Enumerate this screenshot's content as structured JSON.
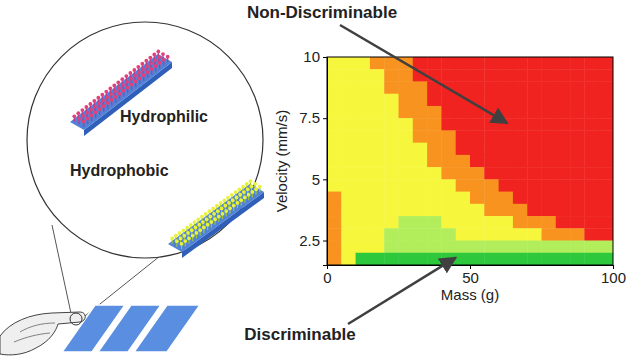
{
  "chart_data": {
    "type": "heatmap",
    "x_label": "Mass (g)",
    "y_label": "Velocity (mm/s)",
    "xlim": [
      0,
      100
    ],
    "ylim": [
      1.5,
      10
    ],
    "xticks": [
      0,
      50,
      100
    ],
    "yticks": [
      2.5,
      5,
      7.5,
      10
    ],
    "x": [
      2.5,
      7.5,
      12.5,
      17.5,
      22.5,
      27.5,
      32.5,
      37.5,
      42.5,
      47.5,
      52.5,
      57.5,
      62.5,
      67.5,
      72.5,
      77.5,
      82.5,
      87.5,
      92.5,
      97.5
    ],
    "y": [
      9.75,
      9.25,
      8.75,
      8.25,
      7.75,
      7.25,
      6.75,
      6.25,
      5.75,
      5.25,
      4.75,
      4.25,
      3.75,
      3.25,
      2.75,
      2.25,
      1.75
    ],
    "z": [
      [
        2,
        2,
        2,
        3,
        3,
        3,
        4,
        4,
        4,
        4,
        4,
        4,
        4,
        4,
        4,
        4,
        4,
        4,
        4,
        4
      ],
      [
        2,
        2,
        2,
        2,
        3,
        3,
        4,
        4,
        4,
        4,
        4,
        4,
        4,
        4,
        4,
        4,
        4,
        4,
        4,
        4
      ],
      [
        2,
        2,
        2,
        2,
        3,
        3,
        3,
        4,
        4,
        4,
        4,
        4,
        4,
        4,
        4,
        4,
        4,
        4,
        4,
        4
      ],
      [
        2,
        2,
        2,
        2,
        2,
        3,
        3,
        4,
        4,
        4,
        4,
        4,
        4,
        4,
        4,
        4,
        4,
        4,
        4,
        4
      ],
      [
        2,
        2,
        2,
        2,
        2,
        3,
        3,
        3,
        4,
        4,
        4,
        4,
        4,
        4,
        4,
        4,
        4,
        4,
        4,
        4
      ],
      [
        2,
        2,
        2,
        2,
        2,
        2,
        3,
        3,
        4,
        4,
        4,
        4,
        4,
        4,
        4,
        4,
        4,
        4,
        4,
        4
      ],
      [
        2,
        2,
        2,
        2,
        2,
        2,
        3,
        3,
        3,
        4,
        4,
        4,
        4,
        4,
        4,
        4,
        4,
        4,
        4,
        4
      ],
      [
        2,
        2,
        2,
        2,
        2,
        2,
        2,
        3,
        3,
        4,
        4,
        4,
        4,
        4,
        4,
        4,
        4,
        4,
        4,
        4
      ],
      [
        2,
        2,
        2,
        2,
        2,
        2,
        2,
        3,
        3,
        3,
        4,
        4,
        4,
        4,
        4,
        4,
        4,
        4,
        4,
        4
      ],
      [
        2,
        2,
        2,
        2,
        2,
        2,
        2,
        2,
        3,
        3,
        3,
        4,
        4,
        4,
        4,
        4,
        4,
        4,
        4,
        4
      ],
      [
        2,
        2,
        2,
        2,
        2,
        2,
        2,
        2,
        2,
        3,
        3,
        3,
        4,
        4,
        4,
        4,
        4,
        4,
        4,
        4
      ],
      [
        3,
        2,
        2,
        2,
        2,
        2,
        2,
        2,
        2,
        2,
        3,
        3,
        3,
        4,
        4,
        4,
        4,
        4,
        4,
        4
      ],
      [
        3,
        2,
        2,
        2,
        2,
        2,
        2,
        2,
        2,
        2,
        2,
        3,
        3,
        3,
        4,
        4,
        4,
        4,
        4,
        4
      ],
      [
        3,
        2,
        2,
        2,
        2,
        1,
        1,
        1,
        2,
        2,
        2,
        2,
        2,
        3,
        3,
        3,
        4,
        4,
        4,
        4
      ],
      [
        3,
        2,
        2,
        2,
        1,
        1,
        1,
        1,
        1,
        2,
        2,
        2,
        2,
        2,
        2,
        3,
        3,
        3,
        4,
        4
      ],
      [
        3,
        2,
        2,
        2,
        1,
        1,
        1,
        1,
        1,
        1,
        1,
        1,
        1,
        1,
        1,
        1,
        1,
        1,
        1,
        1
      ],
      [
        3,
        2,
        0,
        0,
        0,
        0,
        0,
        0,
        0,
        0,
        0,
        0,
        0,
        0,
        0,
        0,
        0,
        0,
        0,
        0
      ]
    ],
    "colors": [
      "#2ec83c",
      "#b2ee5c",
      "#f6f63c",
      "#f7931e",
      "#f02320"
    ],
    "annotations": [
      {
        "text": "Non-Discriminable",
        "x": 63,
        "y": 7.3
      },
      {
        "text": "Discriminable",
        "x": 45,
        "y": 1.8
      }
    ]
  },
  "inset": {
    "top_label": "Hydrophilic",
    "bottom_label": "Hydrophobic"
  }
}
